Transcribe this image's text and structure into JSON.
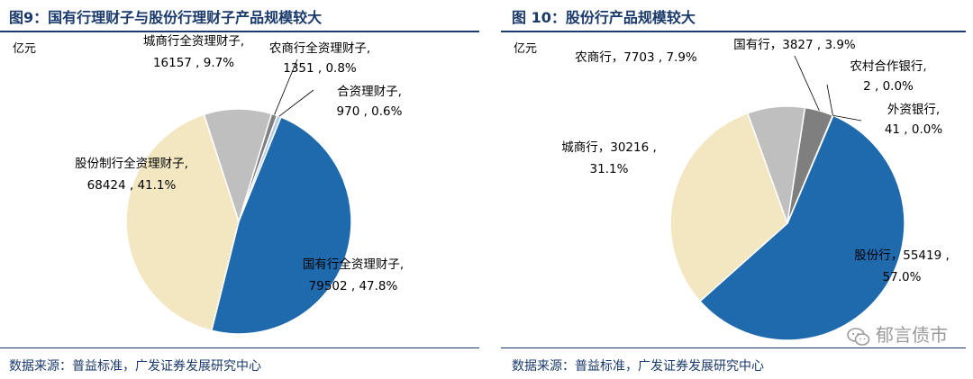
{
  "chart_data": [
    {
      "type": "pie",
      "title": "图9：国有行理财子与股份行理财子产品规模较大",
      "unit": "亿元",
      "source": "数据来源：普益标准，广发证券发展研究中心",
      "slices": [
        {
          "name": "国有行全资理财子",
          "value": 79502,
          "pct": "47.8%",
          "value_text": "79502 , 47.8%",
          "color": "#1f69ad"
        },
        {
          "name": "股份制行全资理财子",
          "value": 68424,
          "pct": "41.1%",
          "value_text": "68424 , 41.1%",
          "color": "#f3e7c1"
        },
        {
          "name": "城商行全资理财子",
          "value": 16157,
          "pct": "9.7%",
          "value_text": "16157 , 9.7%",
          "color": "#bfbfbf"
        },
        {
          "name": "农商行全资理财子",
          "value": 1351,
          "pct": "0.8%",
          "value_text": "1351 , 0.8%",
          "color": "#7f7f7f"
        },
        {
          "name": "合资理财子",
          "value": 970,
          "pct": "0.6%",
          "value_text": "970 , 0.6%",
          "color": "#b4cbe6"
        }
      ]
    },
    {
      "type": "pie",
      "title": "图 10：股份行产品规模较大",
      "unit": "亿元",
      "source": "数据来源：普益标准，广发证券发展研究中心",
      "slices": [
        {
          "name": "股份行",
          "value": 55419,
          "pct": "57.0%",
          "value_text": "55419 ,",
          "pct_text": "57.0%",
          "color": "#1f69ad"
        },
        {
          "name": "城商行",
          "value": 30216,
          "pct": "31.1%",
          "value_text": "城商行，30216 ,",
          "pct_text": "31.1%",
          "color": "#f3e7c1"
        },
        {
          "name": "农商行",
          "value": 7703,
          "pct": "7.9%",
          "value_text": "农商行，7703 , 7.9%",
          "color": "#bfbfbf"
        },
        {
          "name": "国有行",
          "value": 3827,
          "pct": "3.9%",
          "value_text": "国有行，3827 , 3.9%",
          "color": "#7f7f7f"
        },
        {
          "name": "农村合作银行",
          "value": 2,
          "pct": "0.0%",
          "value_text": "2 , 0.0%",
          "color": "#d9d9d9"
        },
        {
          "name": "外资银行",
          "value": 41,
          "pct": "0.0%",
          "value_text": "41 , 0.0%",
          "color": "#ffffff"
        }
      ]
    }
  ],
  "labels": {
    "c1_guoyou_name": "国有行全资理财子,",
    "c1_gufen_name": "股份制行全资理财子,",
    "c1_cheng_name": "城商行全资理财子,",
    "c1_nong_name": "农商行全资理财子,",
    "c1_hezi_name": "合资理财子,",
    "c2_gufen_name": "股份行，55419 ,",
    "c2_cheng_name": "城商行，30216 ,",
    "c2_nonghui_name": "农村合作银行,",
    "c2_waizi_name": "外资银行,"
  },
  "watermark": "郁言债市"
}
